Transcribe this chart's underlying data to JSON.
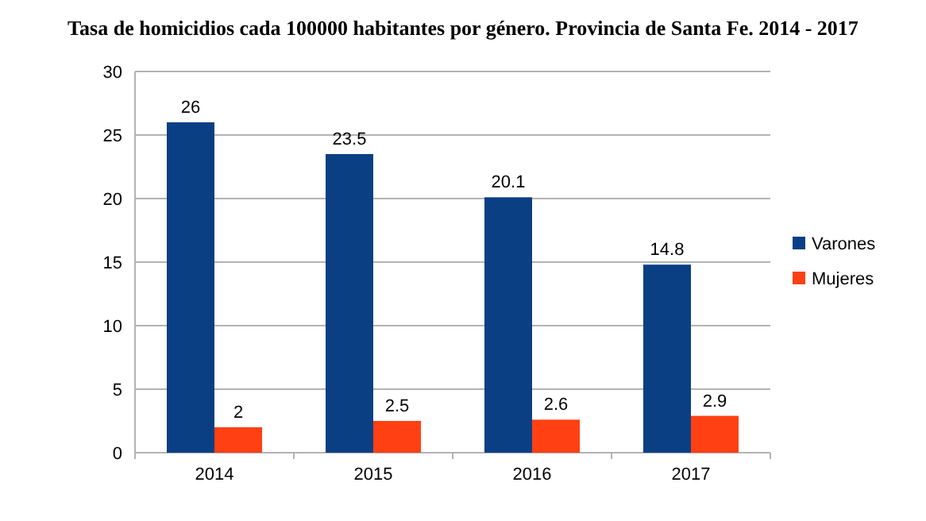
{
  "chart_data": {
    "type": "bar",
    "title": "Tasa de homicidios cada 100000 habitantes por género. Provincia de Santa Fe. 2014 - 2017",
    "categories": [
      "2014",
      "2015",
      "2016",
      "2017"
    ],
    "series": [
      {
        "name": "Varones",
        "color": "#0b3f84",
        "values": [
          26,
          23.5,
          20.1,
          14.8
        ]
      },
      {
        "name": "Mujeres",
        "color": "#ff4013",
        "values": [
          2,
          2.5,
          2.6,
          2.9
        ]
      }
    ],
    "ylim": [
      0,
      30
    ],
    "yticks": [
      0,
      5,
      10,
      15,
      20,
      25,
      30
    ],
    "grid": "y",
    "legend": "right",
    "data_labels": true
  }
}
